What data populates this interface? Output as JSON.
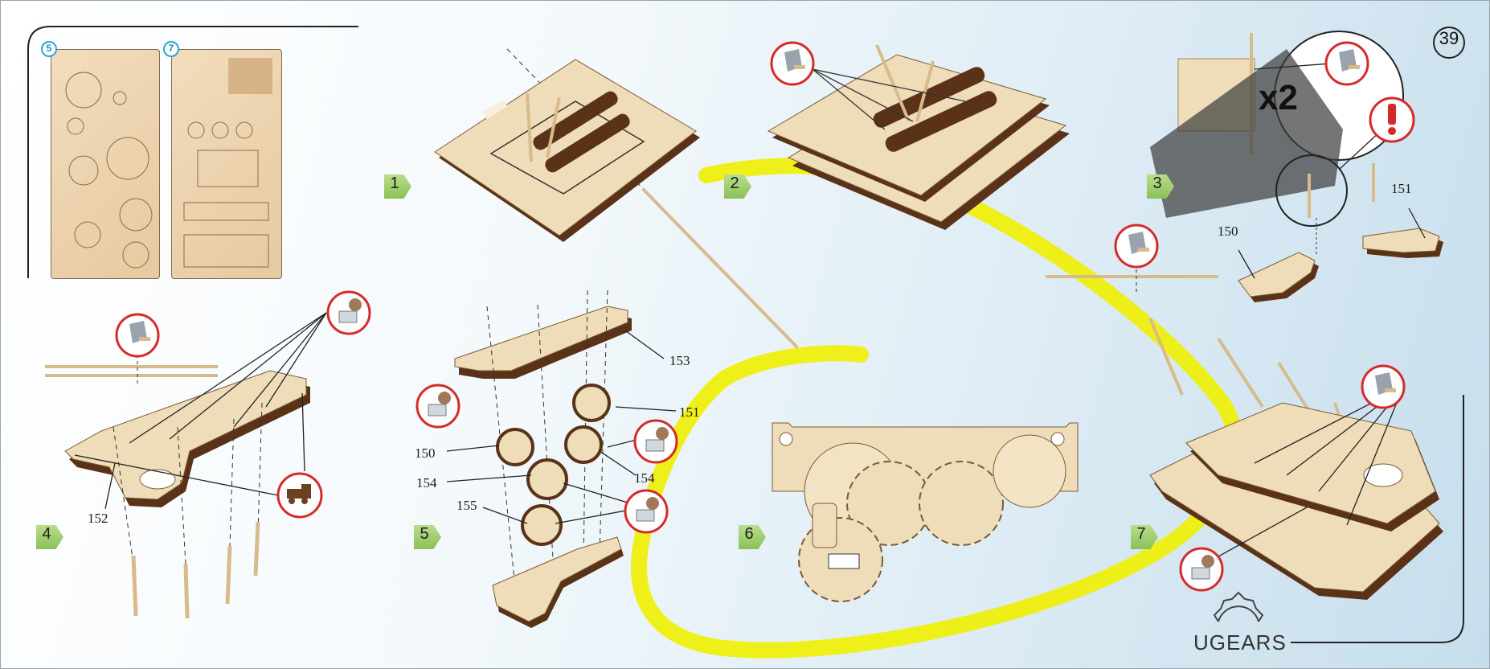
{
  "page_number": "39",
  "brand": "UGEARS",
  "zoom_callout": "x2",
  "sheets": [
    {
      "badge": "5"
    },
    {
      "badge": "7"
    }
  ],
  "steps": [
    "1",
    "2",
    "3",
    "4",
    "5",
    "6",
    "7"
  ],
  "part_labels": {
    "p150_step3": "150",
    "p151_step3": "151",
    "p152_step4": "152",
    "p153_step5": "153",
    "p151_step5": "151",
    "p150_step5": "150",
    "p154a_step5": "154",
    "p154b_step5": "154",
    "p155_step5": "155"
  },
  "colors": {
    "plywood": "#efdcb8",
    "plywood_edge": "#5a3217",
    "highlight": "#f0f000",
    "step_badge": "#8bc157",
    "warning_red": "#d62a2a"
  },
  "icons": [
    "glue-stick-icon",
    "wax-candle-icon",
    "warning-exclamation-icon",
    "locomotive-icon"
  ]
}
